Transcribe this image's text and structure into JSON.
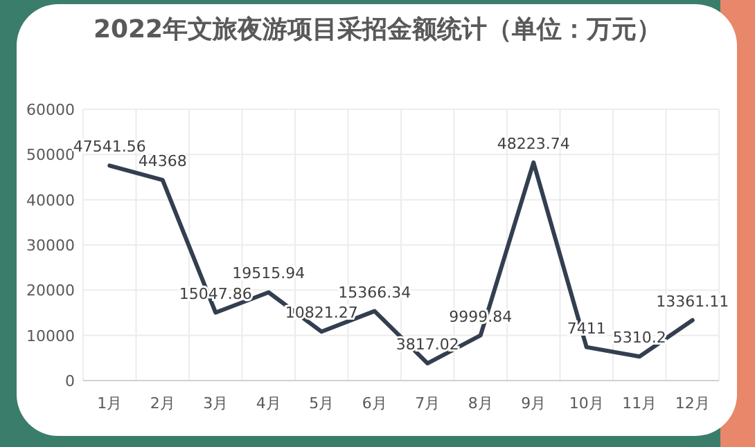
{
  "chart_data": {
    "type": "line",
    "title": "2022年文旅夜游项目采招金额统计（单位：万元）",
    "categories": [
      "1月",
      "2月",
      "3月",
      "4月",
      "5月",
      "6月",
      "7月",
      "8月",
      "9月",
      "10月",
      "11月",
      "12月"
    ],
    "series": [
      {
        "color": "#333f50",
        "values": [
          47541.56,
          44368,
          15047.86,
          19515.94,
          10821.27,
          15366.34,
          3817.02,
          9999.84,
          48223.74,
          7411,
          5310.2,
          13361.11
        ]
      }
    ],
    "ylim": [
      0,
      60000
    ],
    "yticks": [
      0,
      10000,
      20000,
      30000,
      40000,
      50000,
      60000
    ],
    "grid": true,
    "data_labels": true,
    "marker": "none",
    "line_style": "solid"
  }
}
